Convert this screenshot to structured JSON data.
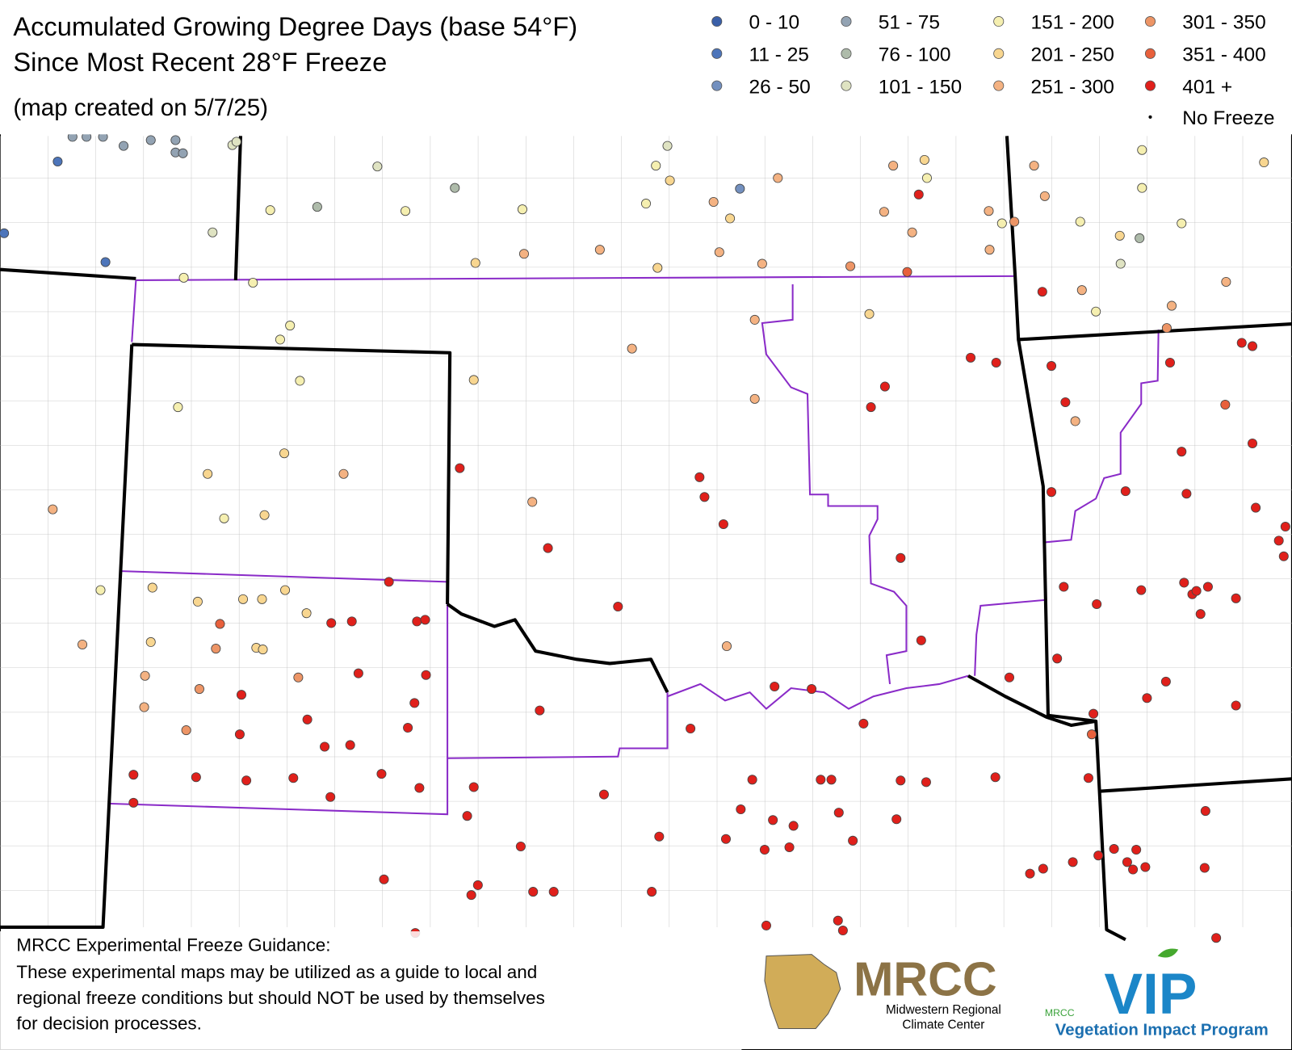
{
  "header": {
    "title_line1": "Accumulated Growing Degree Days (base 54°F)",
    "title_line2": "Since Most Recent 28°F Freeze",
    "subtitle": "(map created on 5/7/25)"
  },
  "legend": {
    "items": [
      {
        "label": "0 - 10",
        "color": "#3a5fa8"
      },
      {
        "label": "11 - 25",
        "color": "#4d75ba"
      },
      {
        "label": "26 - 50",
        "color": "#7390bf"
      },
      {
        "label": "51 - 75",
        "color": "#93a3b3"
      },
      {
        "label": "76 - 100",
        "color": "#aebbaa"
      },
      {
        "label": "101 - 150",
        "color": "#dfe3c2"
      },
      {
        "label": "151 - 200",
        "color": "#f5efb0"
      },
      {
        "label": "201 - 250",
        "color": "#f8d690"
      },
      {
        "label": "251 - 300",
        "color": "#f4b282"
      },
      {
        "label": "301 - 350",
        "color": "#ed9566"
      },
      {
        "label": "351 - 400",
        "color": "#e8603c"
      },
      {
        "label": "401 +",
        "color": "#e0201b"
      },
      {
        "label": "No Freeze",
        "color": "#000000"
      }
    ]
  },
  "footer": {
    "heading": "MRCC Experimental Freeze Guidance:",
    "lines": [
      "These experimental maps may be utilized as a guide to local and",
      "regional freeze conditions but should NOT be used by themselves",
      "for decision processes."
    ]
  },
  "logos": {
    "mrcc": "MRCC",
    "mrcc_name_line1": "Midwestern Regional",
    "mrcc_name_line2": "Climate Center",
    "vip_small": "MRCC",
    "vip": "VIP",
    "vip_name": "Vegetation Impact Program"
  }
}
